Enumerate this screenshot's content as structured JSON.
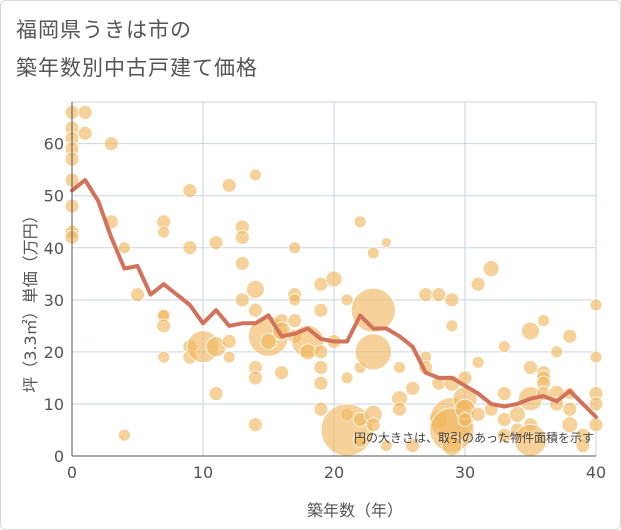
{
  "title_line1": "福岡県うきは市の",
  "title_line2": "築年数別中古戸建て価格",
  "colors": {
    "bubble": "#f0b65c",
    "bubble_edge": "#ffffff",
    "line": "#d2725a",
    "grid": "#c9d3e0",
    "axis": "#555555"
  },
  "chart_data": {
    "type": "scatter",
    "xlabel": "築年数（年）",
    "ylabel": "坪（3.3㎡）単価（万円）",
    "xlim": [
      0,
      40
    ],
    "ylim": [
      0,
      68
    ],
    "xticks": [
      0,
      10,
      20,
      30,
      40
    ],
    "yticks": [
      0,
      10,
      20,
      30,
      40,
      50,
      60
    ],
    "note": "円の大きさは、取引のあった物件面積を示す",
    "average_line": {
      "name": "平均坪単価",
      "x": [
        0,
        1,
        2,
        3,
        4,
        5,
        6,
        7,
        8,
        9,
        10,
        11,
        12,
        13,
        14,
        15,
        16,
        17,
        18,
        19,
        20,
        21,
        22,
        23,
        24,
        25,
        26,
        27,
        28,
        29,
        30,
        31,
        32,
        33,
        34,
        35,
        36,
        37,
        38,
        39,
        40
      ],
      "y": [
        51,
        53,
        49,
        42,
        36,
        36.5,
        31,
        33,
        31,
        29,
        25.5,
        28,
        25,
        25.5,
        25.5,
        27,
        23,
        23.5,
        24.5,
        22.5,
        22,
        22,
        27,
        24.5,
        24.5,
        23,
        21,
        16,
        15,
        15,
        13.5,
        12,
        10,
        9.5,
        10,
        11,
        11.5,
        10.5,
        12.5,
        10,
        7.5
      ]
    },
    "points": [
      {
        "x": 0,
        "y": 66,
        "s": 7
      },
      {
        "x": 0,
        "y": 63,
        "s": 7
      },
      {
        "x": 0,
        "y": 61,
        "s": 7
      },
      {
        "x": 0,
        "y": 59,
        "s": 7
      },
      {
        "x": 0,
        "y": 57,
        "s": 7
      },
      {
        "x": 0,
        "y": 53,
        "s": 7
      },
      {
        "x": 0,
        "y": 48,
        "s": 7
      },
      {
        "x": 0,
        "y": 43,
        "s": 7
      },
      {
        "x": 0,
        "y": 42,
        "s": 7
      },
      {
        "x": 1,
        "y": 66,
        "s": 7
      },
      {
        "x": 1,
        "y": 62,
        "s": 7
      },
      {
        "x": 3,
        "y": 60,
        "s": 7
      },
      {
        "x": 3,
        "y": 45,
        "s": 7
      },
      {
        "x": 4,
        "y": 40,
        "s": 6
      },
      {
        "x": 4,
        "y": 4,
        "s": 6
      },
      {
        "x": 5,
        "y": 31,
        "s": 7
      },
      {
        "x": 7,
        "y": 27,
        "s": 7
      },
      {
        "x": 7,
        "y": 27,
        "s": 6
      },
      {
        "x": 7,
        "y": 25,
        "s": 7
      },
      {
        "x": 7,
        "y": 19,
        "s": 6
      },
      {
        "x": 7,
        "y": 45,
        "s": 7
      },
      {
        "x": 7,
        "y": 43,
        "s": 6
      },
      {
        "x": 9,
        "y": 51,
        "s": 7
      },
      {
        "x": 9,
        "y": 40,
        "s": 7
      },
      {
        "x": 9,
        "y": 21,
        "s": 7
      },
      {
        "x": 9,
        "y": 19,
        "s": 7
      },
      {
        "x": 10,
        "y": 21,
        "s": 16
      },
      {
        "x": 11,
        "y": 41,
        "s": 7
      },
      {
        "x": 11,
        "y": 21,
        "s": 10
      },
      {
        "x": 11,
        "y": 12,
        "s": 7
      },
      {
        "x": 12,
        "y": 52,
        "s": 7
      },
      {
        "x": 12,
        "y": 22,
        "s": 7
      },
      {
        "x": 12,
        "y": 19,
        "s": 6
      },
      {
        "x": 13,
        "y": 44,
        "s": 7
      },
      {
        "x": 13,
        "y": 42,
        "s": 7
      },
      {
        "x": 13,
        "y": 37,
        "s": 7
      },
      {
        "x": 13,
        "y": 30,
        "s": 7
      },
      {
        "x": 14,
        "y": 54,
        "s": 6
      },
      {
        "x": 14,
        "y": 32,
        "s": 9
      },
      {
        "x": 14,
        "y": 28,
        "s": 7
      },
      {
        "x": 14,
        "y": 17,
        "s": 7
      },
      {
        "x": 14,
        "y": 15,
        "s": 7
      },
      {
        "x": 14,
        "y": 6,
        "s": 7
      },
      {
        "x": 15,
        "y": 23,
        "s": 20
      },
      {
        "x": 15,
        "y": 22,
        "s": 8
      },
      {
        "x": 16,
        "y": 26,
        "s": 7
      },
      {
        "x": 16,
        "y": 16,
        "s": 7
      },
      {
        "x": 16,
        "y": 24,
        "s": 9
      },
      {
        "x": 17,
        "y": 40,
        "s": 6
      },
      {
        "x": 17,
        "y": 31,
        "s": 7
      },
      {
        "x": 17,
        "y": 30,
        "s": 6
      },
      {
        "x": 17,
        "y": 26,
        "s": 7
      },
      {
        "x": 17,
        "y": 23,
        "s": 7
      },
      {
        "x": 18,
        "y": 22,
        "s": 16
      },
      {
        "x": 18,
        "y": 20,
        "s": 8
      },
      {
        "x": 19,
        "y": 33,
        "s": 7
      },
      {
        "x": 19,
        "y": 28,
        "s": 7
      },
      {
        "x": 19,
        "y": 20,
        "s": 7
      },
      {
        "x": 19,
        "y": 17,
        "s": 7
      },
      {
        "x": 19,
        "y": 14,
        "s": 7
      },
      {
        "x": 19,
        "y": 9,
        "s": 7
      },
      {
        "x": 20,
        "y": 34,
        "s": 8
      },
      {
        "x": 20,
        "y": 22,
        "s": 7
      },
      {
        "x": 21,
        "y": 30,
        "s": 6
      },
      {
        "x": 21,
        "y": 15,
        "s": 6
      },
      {
        "x": 21,
        "y": 8,
        "s": 6
      },
      {
        "x": 21,
        "y": 5,
        "s": 26
      },
      {
        "x": 22,
        "y": 45,
        "s": 6
      },
      {
        "x": 22,
        "y": 17,
        "s": 6
      },
      {
        "x": 22,
        "y": 7,
        "s": 7
      },
      {
        "x": 22,
        "y": 3,
        "s": 7
      },
      {
        "x": 23,
        "y": 39,
        "s": 6
      },
      {
        "x": 23,
        "y": 28,
        "s": 22
      },
      {
        "x": 23,
        "y": 20,
        "s": 18
      },
      {
        "x": 23,
        "y": 8,
        "s": 9
      },
      {
        "x": 23,
        "y": 6,
        "s": 7
      },
      {
        "x": 24,
        "y": 41,
        "s": 5
      },
      {
        "x": 24,
        "y": 2,
        "s": 6
      },
      {
        "x": 25,
        "y": 11,
        "s": 8
      },
      {
        "x": 25,
        "y": 9,
        "s": 7
      },
      {
        "x": 25,
        "y": 17,
        "s": 6
      },
      {
        "x": 26,
        "y": 13,
        "s": 7
      },
      {
        "x": 26,
        "y": 2,
        "s": 7
      },
      {
        "x": 27,
        "y": 31,
        "s": 7
      },
      {
        "x": 27,
        "y": 19,
        "s": 6
      },
      {
        "x": 27,
        "y": 17,
        "s": 7
      },
      {
        "x": 28,
        "y": 31,
        "s": 7
      },
      {
        "x": 28,
        "y": 14,
        "s": 7
      },
      {
        "x": 28,
        "y": 7,
        "s": 9
      },
      {
        "x": 29,
        "y": 30,
        "s": 7
      },
      {
        "x": 29,
        "y": 25,
        "s": 6
      },
      {
        "x": 29,
        "y": 14,
        "s": 8
      },
      {
        "x": 29,
        "y": 7,
        "s": 22
      },
      {
        "x": 29,
        "y": 5,
        "s": 22
      },
      {
        "x": 29,
        "y": 2,
        "s": 10
      },
      {
        "x": 30,
        "y": 15,
        "s": 7
      },
      {
        "x": 30,
        "y": 11,
        "s": 12
      },
      {
        "x": 30,
        "y": 9,
        "s": 10
      },
      {
        "x": 30,
        "y": 7,
        "s": 7
      },
      {
        "x": 31,
        "y": 33,
        "s": 7
      },
      {
        "x": 31,
        "y": 18,
        "s": 6
      },
      {
        "x": 31,
        "y": 8,
        "s": 7
      },
      {
        "x": 32,
        "y": 36,
        "s": 8
      },
      {
        "x": 32,
        "y": 9,
        "s": 7
      },
      {
        "x": 33,
        "y": 21,
        "s": 6
      },
      {
        "x": 33,
        "y": 12,
        "s": 7
      },
      {
        "x": 33,
        "y": 7,
        "s": 7
      },
      {
        "x": 33,
        "y": 4,
        "s": 7
      },
      {
        "x": 34,
        "y": 8,
        "s": 8
      },
      {
        "x": 34,
        "y": 5,
        "s": 7
      },
      {
        "x": 35,
        "y": 24,
        "s": 9
      },
      {
        "x": 35,
        "y": 17,
        "s": 7
      },
      {
        "x": 35,
        "y": 11,
        "s": 12
      },
      {
        "x": 35,
        "y": 6,
        "s": 7
      },
      {
        "x": 35,
        "y": 3,
        "s": 16
      },
      {
        "x": 36,
        "y": 26,
        "s": 6
      },
      {
        "x": 36,
        "y": 16,
        "s": 7
      },
      {
        "x": 36,
        "y": 15,
        "s": 7
      },
      {
        "x": 36,
        "y": 14,
        "s": 7
      },
      {
        "x": 36,
        "y": 12,
        "s": 7
      },
      {
        "x": 37,
        "y": 20,
        "s": 6
      },
      {
        "x": 37,
        "y": 12,
        "s": 8
      },
      {
        "x": 37,
        "y": 10,
        "s": 7
      },
      {
        "x": 38,
        "y": 23,
        "s": 7
      },
      {
        "x": 38,
        "y": 12,
        "s": 6
      },
      {
        "x": 38,
        "y": 9,
        "s": 7
      },
      {
        "x": 38,
        "y": 6,
        "s": 8
      },
      {
        "x": 39,
        "y": 4,
        "s": 7
      },
      {
        "x": 39,
        "y": 2,
        "s": 7
      },
      {
        "x": 40,
        "y": 29,
        "s": 6
      },
      {
        "x": 40,
        "y": 19,
        "s": 6
      },
      {
        "x": 40,
        "y": 12,
        "s": 7
      },
      {
        "x": 40,
        "y": 10,
        "s": 7
      },
      {
        "x": 40,
        "y": 6,
        "s": 7
      }
    ]
  }
}
